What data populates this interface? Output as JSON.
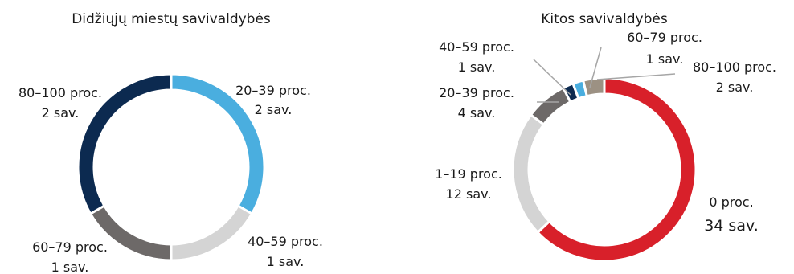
{
  "chart_data": [
    {
      "type": "pie",
      "title": "Didžiųjų miestų savivaldybės",
      "categories": [
        "20–39 proc.",
        "40–59 proc.",
        "60–79 proc.",
        "80–100 proc."
      ],
      "values": [
        2,
        1,
        1,
        2
      ],
      "value_labels": [
        "2 sav.",
        "1 sav.",
        "1 sav.",
        "2 sav."
      ],
      "colors": [
        "#4aaedf",
        "#d4d4d4",
        "#6d6968",
        "#0c2a50"
      ]
    },
    {
      "type": "pie",
      "title": "Kitos savivaldybės",
      "categories": [
        "0 proc.",
        "1–19 proc.",
        "20–39 proc.",
        "40–59 proc.",
        "60–79 proc.",
        "80–100 proc."
      ],
      "values": [
        34,
        12,
        4,
        1,
        1,
        2
      ],
      "value_labels": [
        "34 sav.",
        "12 sav.",
        "4 sav.",
        "1 sav.",
        "1 sav.",
        "2 sav."
      ],
      "colors": [
        "#d8202a",
        "#d4d4d4",
        "#6d6968",
        "#0c2a50",
        "#4aaedf",
        "#9c9183"
      ]
    }
  ]
}
